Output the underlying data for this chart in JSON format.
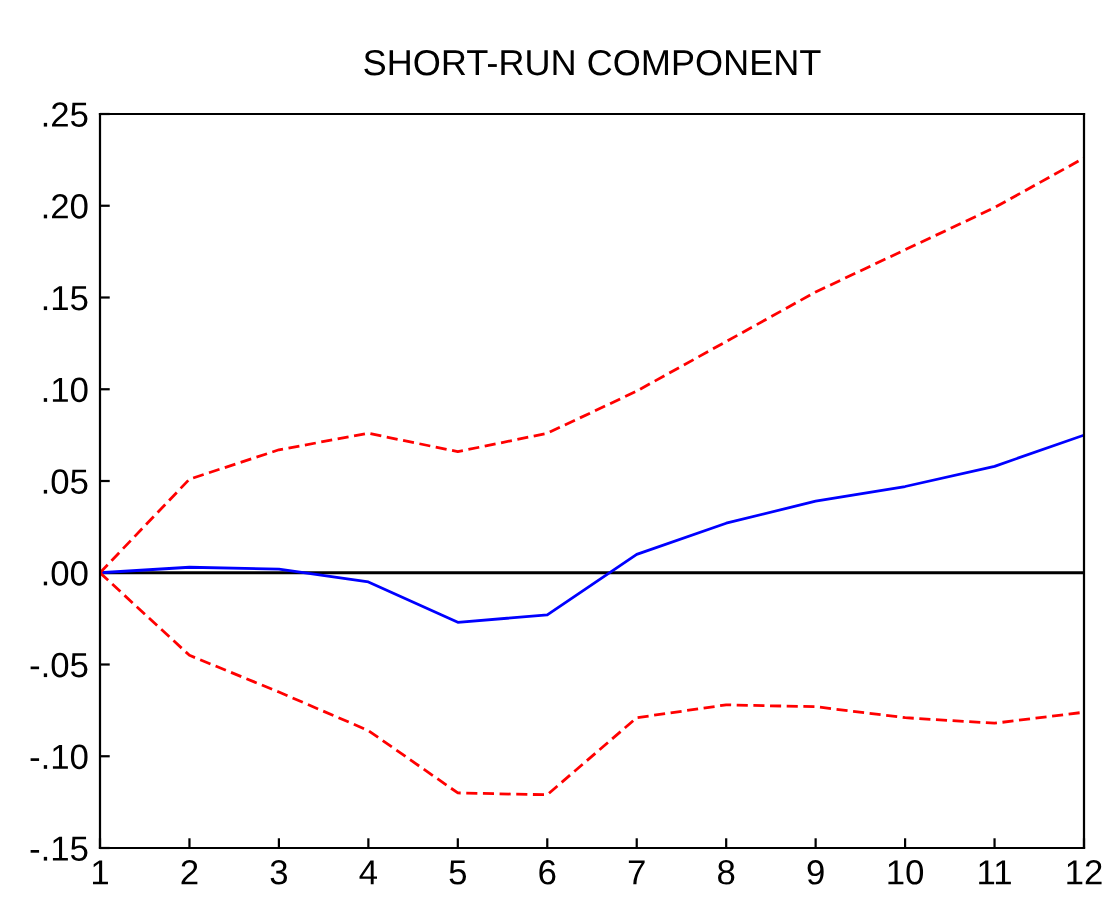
{
  "chart_data": {
    "type": "line",
    "title": "SHORT-RUN COMPONENT",
    "x": [
      1,
      2,
      3,
      4,
      5,
      6,
      7,
      8,
      9,
      10,
      11,
      12
    ],
    "series": [
      {
        "color": "#0000ff",
        "line_style": "solid",
        "values": [
          0,
          0.003,
          0.002,
          -0.005,
          -0.027,
          -0.023,
          0.01,
          0.027,
          0.039,
          0.047,
          0.058,
          0.075
        ]
      },
      {
        "color": "#ff0000",
        "line_style": "dashed",
        "values": [
          0,
          0.051,
          0.067,
          0.076,
          0.066,
          0.076,
          0.099,
          0.126,
          0.153,
          0.176,
          0.199,
          0.226
        ]
      },
      {
        "color": "#ff0000",
        "line_style": "dashed",
        "values": [
          0,
          -0.045,
          -0.065,
          -0.086,
          -0.12,
          -0.121,
          -0.079,
          -0.072,
          -0.073,
          -0.079,
          -0.082,
          -0.076
        ]
      }
    ],
    "xlim": [
      1,
      12
    ],
    "xticks": [
      1,
      2,
      3,
      4,
      5,
      6,
      7,
      8,
      9,
      10,
      11,
      12
    ],
    "ylim": [
      -0.15,
      0.25
    ],
    "yticks": [
      {
        "value": -0.15,
        "label": "-.15"
      },
      {
        "value": -0.1,
        "label": "-.10"
      },
      {
        "value": -0.05,
        "label": "-.05"
      },
      {
        "value": 0,
        "label": ".00"
      },
      {
        "value": 0.05,
        "label": ".05"
      },
      {
        "value": 0.1,
        "label": ".10"
      },
      {
        "value": 0.15,
        "label": ".15"
      },
      {
        "value": 0.2,
        "label": ".20"
      },
      {
        "value": 0.25,
        "label": ".25"
      }
    ],
    "ref_lines": [
      {
        "axis": "y",
        "value": 0,
        "color": "#000000"
      }
    ],
    "grid": false,
    "legend": false
  }
}
